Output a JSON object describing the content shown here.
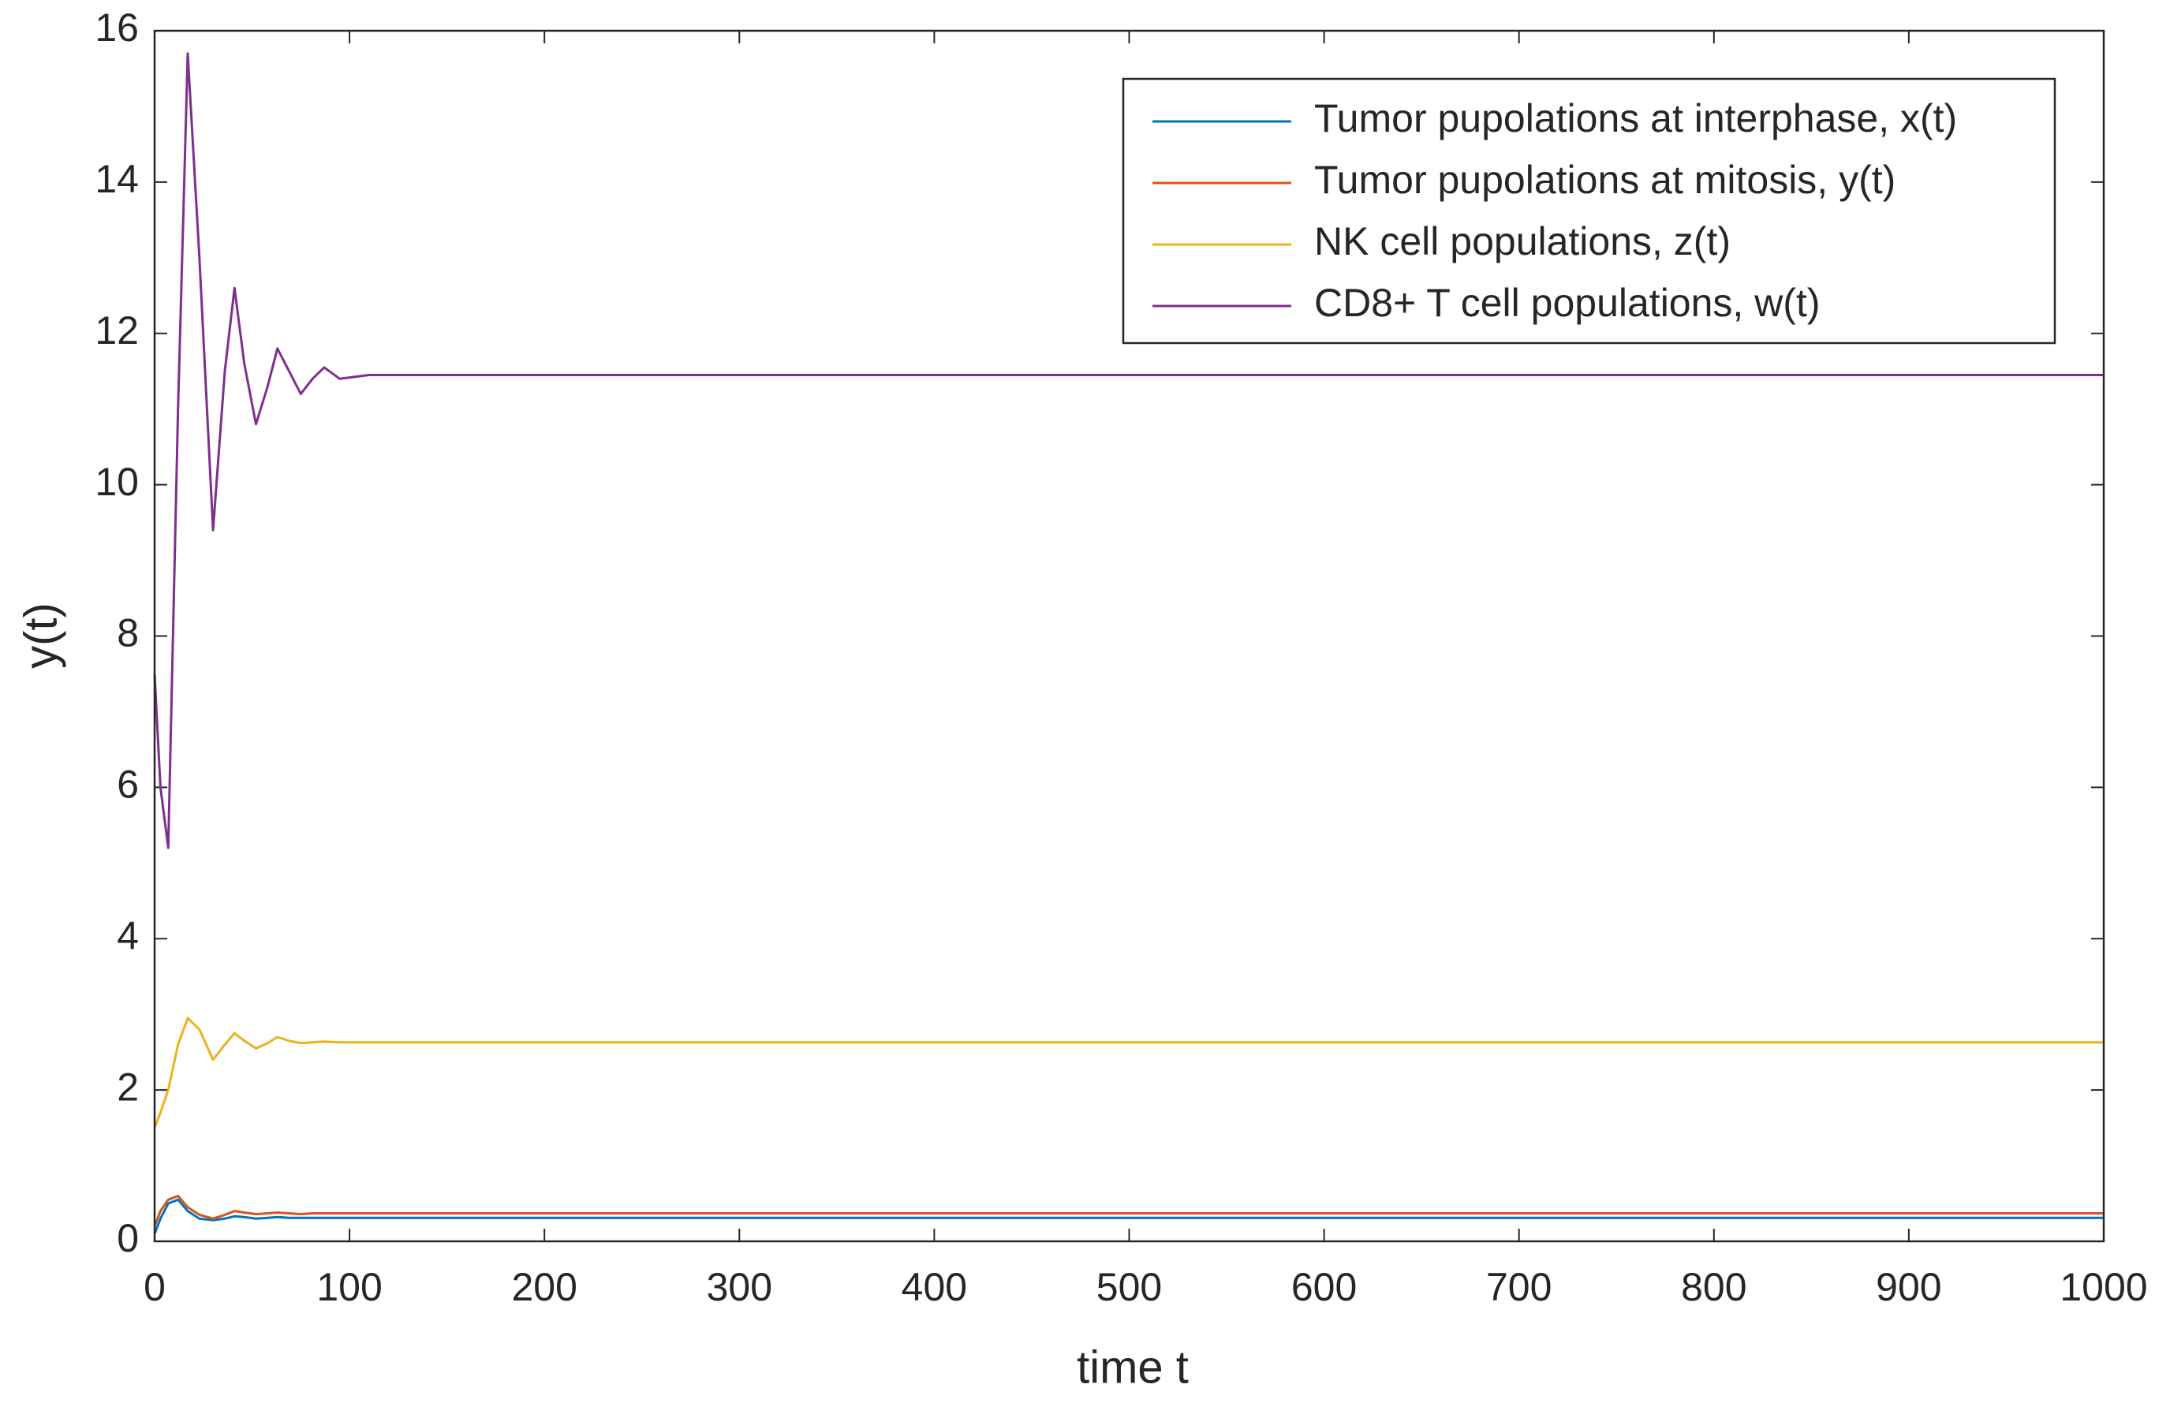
{
  "chart_data": {
    "type": "line",
    "xlabel": "time t",
    "ylabel": "y(t)",
    "x": [
      0,
      3,
      7,
      12,
      17,
      23,
      30,
      36,
      41,
      46,
      52,
      58,
      63,
      69,
      75,
      81,
      87,
      95,
      110,
      130,
      200,
      300,
      400,
      500,
      600,
      700,
      800,
      900,
      1000
    ],
    "series": [
      {
        "name": "Tumor pupolations at interphase, x(t)",
        "color": "#0072BD",
        "values": [
          0.1,
          0.3,
          0.5,
          0.55,
          0.4,
          0.3,
          0.28,
          0.3,
          0.33,
          0.32,
          0.3,
          0.31,
          0.32,
          0.31,
          0.31,
          0.31,
          0.31,
          0.31,
          0.31,
          0.31,
          0.31,
          0.31,
          0.31,
          0.31,
          0.31,
          0.31,
          0.31,
          0.31,
          0.31
        ]
      },
      {
        "name": "Tumor pupolations at mitosis, y(t)",
        "color": "#D95319",
        "values": [
          0.2,
          0.4,
          0.55,
          0.6,
          0.45,
          0.35,
          0.3,
          0.35,
          0.4,
          0.38,
          0.36,
          0.37,
          0.38,
          0.37,
          0.36,
          0.37,
          0.37,
          0.37,
          0.37,
          0.37,
          0.37,
          0.37,
          0.37,
          0.37,
          0.37,
          0.37,
          0.37,
          0.37,
          0.37
        ]
      },
      {
        "name": "NK cell populations, z(t)",
        "color": "#EDB120",
        "values": [
          1.5,
          1.7,
          2.0,
          2.6,
          2.95,
          2.8,
          2.4,
          2.6,
          2.75,
          2.65,
          2.55,
          2.62,
          2.7,
          2.65,
          2.62,
          2.63,
          2.64,
          2.63,
          2.63,
          2.63,
          2.63,
          2.63,
          2.63,
          2.63,
          2.63,
          2.63,
          2.63,
          2.63,
          2.63
        ]
      },
      {
        "name": "CD8+ T cell populations, w(t)",
        "color": "#7E2F8E",
        "values": [
          7.5,
          6.0,
          5.2,
          11,
          15.7,
          13,
          9.4,
          11.5,
          12.6,
          11.6,
          10.8,
          11.3,
          11.8,
          11.5,
          11.2,
          11.4,
          11.55,
          11.4,
          11.45,
          11.45,
          11.45,
          11.45,
          11.45,
          11.45,
          11.45,
          11.45,
          11.45,
          11.45,
          11.45
        ]
      }
    ],
    "xlim": [
      0,
      1000
    ],
    "xticks": [
      0,
      100,
      200,
      300,
      400,
      500,
      600,
      700,
      800,
      900,
      1000
    ],
    "ylim": [
      0,
      16
    ],
    "yticks": [
      0,
      2,
      4,
      6,
      8,
      10,
      12,
      14,
      16
    ],
    "legend": "northeast"
  }
}
